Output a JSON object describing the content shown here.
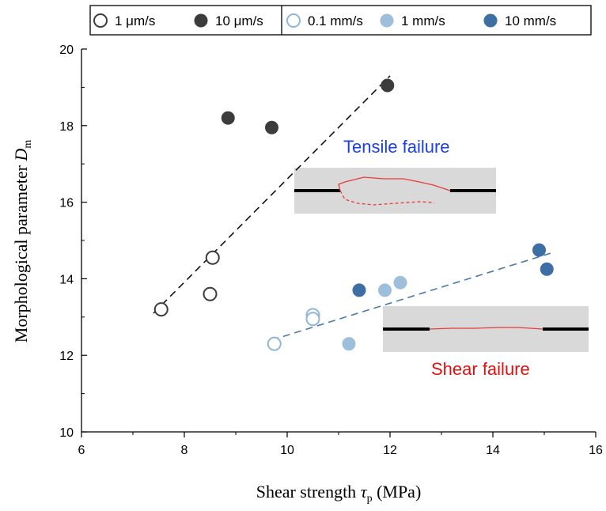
{
  "chart_data": {
    "type": "scatter",
    "xlabel": {
      "main": "Shear strength ",
      "symbol": "τ",
      "sub": "p",
      "unit": " (MPa)"
    },
    "ylabel": {
      "main": "Morphological parameter ",
      "symbol": "D",
      "sub": "m"
    },
    "xlim": [
      6,
      16
    ],
    "ylim": [
      10,
      20
    ],
    "xticks": [
      "6",
      "8",
      "10",
      "12",
      "14",
      "16"
    ],
    "yticks": [
      "10",
      "12",
      "14",
      "16",
      "18",
      "20"
    ],
    "legend_placement": "top",
    "series": [
      {
        "name": "1 μm/s",
        "color": "#3c3c3c",
        "filled": false,
        "points": [
          [
            7.55,
            13.2
          ],
          [
            8.5,
            13.6
          ],
          [
            8.55,
            14.55
          ]
        ]
      },
      {
        "name": "10 μm/s",
        "color": "#3c3c3c",
        "filled": true,
        "points": [
          [
            8.85,
            18.2
          ],
          [
            9.7,
            17.95
          ],
          [
            11.95,
            19.05
          ]
        ]
      },
      {
        "name": "0.1 mm/s",
        "color": "#8fb6d6",
        "filled": false,
        "points": [
          [
            9.75,
            12.3
          ],
          [
            10.5,
            13.05
          ],
          [
            10.5,
            12.95
          ]
        ]
      },
      {
        "name": "1 mm/s",
        "color": "#9dbfdc",
        "filled": true,
        "points": [
          [
            11.2,
            12.3
          ],
          [
            11.9,
            13.7
          ],
          [
            12.2,
            13.9
          ]
        ]
      },
      {
        "name": "10 mm/s",
        "color": "#3d6fa4",
        "filled": true,
        "points": [
          [
            11.4,
            13.7
          ],
          [
            14.9,
            14.75
          ],
          [
            15.05,
            14.25
          ]
        ]
      }
    ],
    "trendlines": [
      {
        "from": [
          7.4,
          13.1
        ],
        "to": [
          12.0,
          19.3
        ],
        "color": "#111111"
      },
      {
        "from": [
          9.7,
          12.4
        ],
        "to": [
          15.2,
          14.7
        ],
        "color": "#4a78a8"
      }
    ],
    "annotations": [
      {
        "text": "Tensile failure",
        "color": "#1a3ff0"
      },
      {
        "text": "Shear failure",
        "color": "#e01010"
      }
    ]
  }
}
